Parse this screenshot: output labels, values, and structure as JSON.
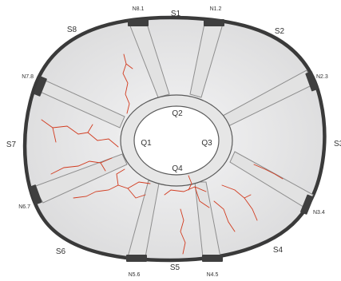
{
  "colors": {
    "background": "#ffffff",
    "outer_fill": "#e9e9ea",
    "outer_stroke": "#3a3a3a",
    "spoke_fill": "#e2e2e2",
    "spoke_stroke": "#8e8e8e",
    "ring_fill": "#e6e6e6",
    "hole_fill": "#ffffff",
    "pad_fill": "#3f3f3f",
    "crack": "#d23b1f",
    "label": "#333333"
  },
  "segment_labels": {
    "s1": "S1",
    "s2": "S2",
    "s3": "S3",
    "s4": "S4",
    "s5": "S5",
    "s6": "S6",
    "s7": "S7",
    "s8": "S8"
  },
  "node_labels": {
    "n12": "N1.2",
    "n23": "N2.3",
    "n34": "N3.4",
    "n45": "N4.5",
    "n56": "N5.6",
    "n67": "N6.7",
    "n78": "N7.8",
    "n81": "N8.1"
  },
  "quadrant_labels": {
    "q1": "Q1",
    "q2": "Q2",
    "q3": "Q3",
    "q4": "Q4"
  }
}
